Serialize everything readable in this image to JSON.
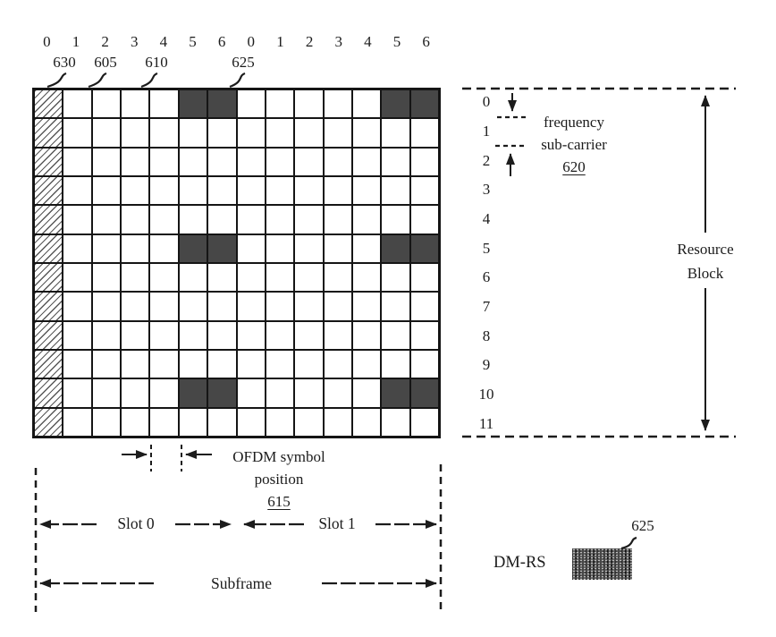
{
  "colors": {
    "ink": "#1c1c1c",
    "paper": "#ffffff",
    "dmrs_fill": "#474747"
  },
  "grid": {
    "columns": 14,
    "rows": 12,
    "symbol_labels": [
      "0",
      "1",
      "2",
      "3",
      "4",
      "5",
      "6",
      "0",
      "1",
      "2",
      "3",
      "4",
      "5",
      "6"
    ],
    "subcarrier_labels": [
      "0",
      "1",
      "2",
      "3",
      "4",
      "5",
      "6",
      "7",
      "8",
      "9",
      "10",
      "11"
    ],
    "hatched_column": 0,
    "dmrs_cells": {
      "rows": [
        0,
        5,
        10
      ],
      "cols": [
        5,
        6,
        12,
        13
      ]
    }
  },
  "refs": {
    "hatched_column": "630",
    "resource_element": "605",
    "symbol_column": "610",
    "dmrs_cell": "625",
    "subcarrier": "620",
    "symbol_position": "615",
    "dmrs_legend": "625"
  },
  "labels": {
    "frequency_line1": "frequency",
    "frequency_line2": "sub-carrier",
    "resource_line1": "Resource",
    "resource_line2": "Block",
    "ofdm_line1": "OFDM symbol",
    "ofdm_line2": "position",
    "slot0": "Slot 0",
    "slot1": "Slot 1",
    "subframe": "Subframe",
    "dmrs": "DM-RS"
  }
}
